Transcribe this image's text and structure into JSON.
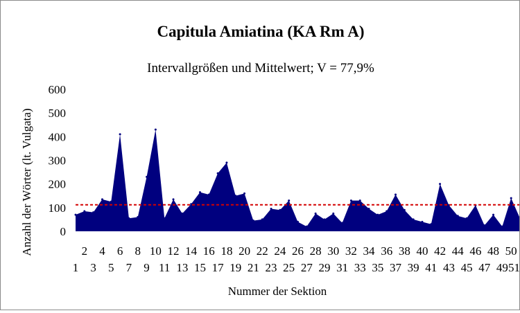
{
  "chart_data": {
    "type": "area",
    "title": "Capitula Amiatina (KA Rm A)",
    "subtitle": "Intervallgrößen und Mittelwert; V = 77,9%",
    "xlabel": "Nummer der Sektion",
    "ylabel": "Anzahl der Wörter (lt. Vulgata)",
    "ylim": [
      0,
      600
    ],
    "y_ticks": [
      "0",
      "100",
      "200",
      "300",
      "400",
      "500",
      "600"
    ],
    "x": [
      1,
      2,
      3,
      4,
      5,
      6,
      7,
      8,
      9,
      10,
      11,
      12,
      13,
      14,
      15,
      16,
      17,
      18,
      19,
      20,
      21,
      22,
      23,
      24,
      25,
      26,
      27,
      28,
      29,
      30,
      31,
      32,
      33,
      34,
      35,
      36,
      37,
      38,
      39,
      40,
      41,
      42,
      43,
      44,
      45,
      46,
      47,
      48,
      49,
      50,
      51
    ],
    "x_tick_labels": [
      "1",
      "2",
      "3",
      "4",
      "5",
      "6",
      "7",
      "8",
      "9",
      "10",
      "11",
      "12",
      "13",
      "14",
      "15",
      "16",
      "17",
      "18",
      "19",
      "20",
      "21",
      "22",
      "23",
      "24",
      "25",
      "26",
      "27",
      "28",
      "29",
      "30",
      "31",
      "32",
      "33",
      "34",
      "35",
      "36",
      "37",
      "38",
      "39",
      "40",
      "41",
      "42",
      "43",
      "44",
      "45",
      "46",
      "47",
      "48",
      "49",
      "50",
      "51"
    ],
    "values": [
      70,
      85,
      80,
      135,
      125,
      410,
      55,
      60,
      230,
      430,
      55,
      135,
      75,
      115,
      165,
      155,
      245,
      290,
      150,
      160,
      45,
      50,
      95,
      90,
      130,
      40,
      20,
      75,
      50,
      75,
      35,
      130,
      130,
      95,
      70,
      85,
      155,
      90,
      50,
      40,
      30,
      200,
      110,
      65,
      55,
      110,
      25,
      70,
      20,
      140,
      55
    ],
    "mean": 112,
    "grid": false,
    "colors": {
      "area": "#00007f",
      "mean_line": "#d40000",
      "plot_background": "#ffffff"
    }
  }
}
